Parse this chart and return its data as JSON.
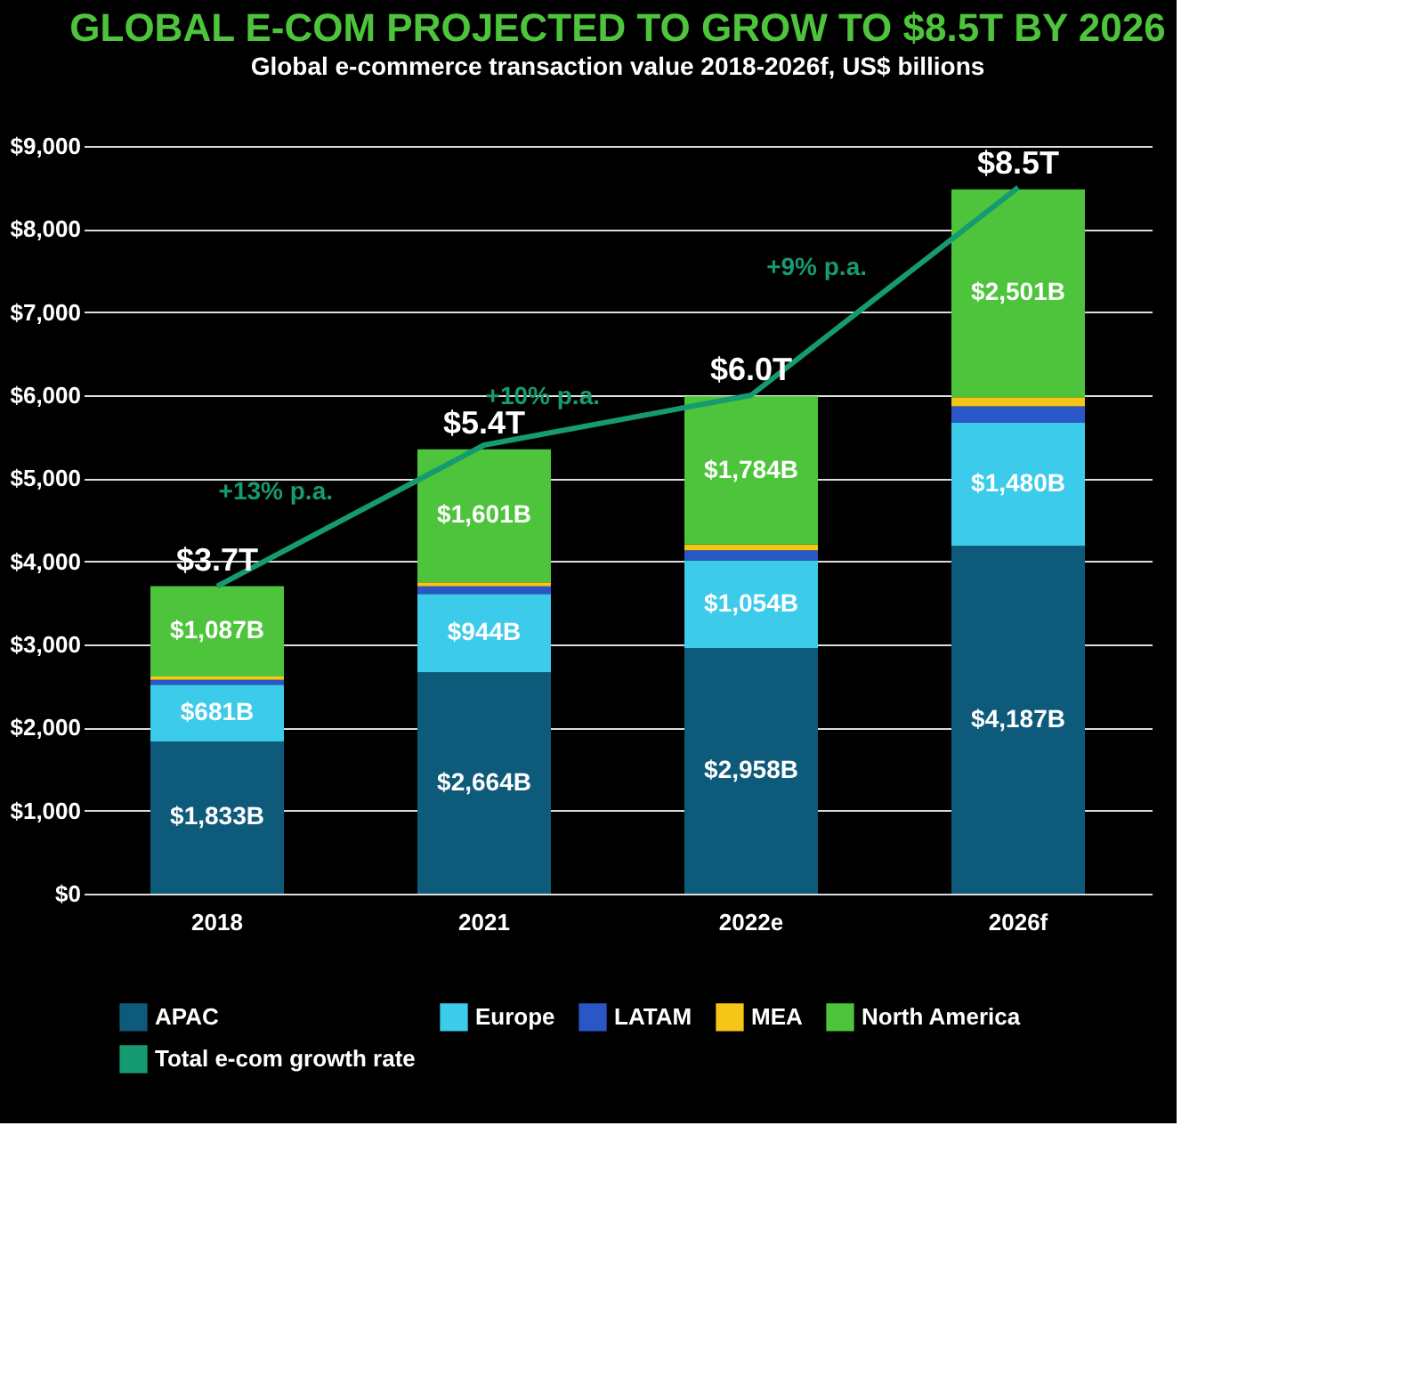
{
  "chart_data": {
    "type": "bar",
    "title": "GLOBAL E-COM PROJECTED TO GROW TO $8.5T BY 2026",
    "subtitle": "Global e-commerce transaction value 2018-2026f, US$ billions",
    "categories": [
      "2018",
      "2021",
      "2022e",
      "2026f"
    ],
    "stacked": true,
    "series": [
      {
        "name": "APAC",
        "color": "#0e5a7a",
        "values": [
          1833,
          2664,
          2958,
          4187
        ],
        "value_labels": [
          "$1,833B",
          "$2,664B",
          "$2,958B",
          "$4,187B"
        ]
      },
      {
        "name": "Europe",
        "color": "#3ccbea",
        "values": [
          681,
          944,
          1054,
          1480
        ],
        "value_labels": [
          "$681B",
          "$944B",
          "$1,054B",
          "$1,480B"
        ]
      },
      {
        "name": "LATAM",
        "color": "#2a56c6",
        "values": [
          60,
          90,
          120,
          200
        ]
      },
      {
        "name": "MEA",
        "color": "#f5c518",
        "values": [
          40,
          50,
          70,
          110
        ]
      },
      {
        "name": "North America",
        "color": "#4ec43c",
        "values": [
          1087,
          1601,
          1784,
          2501
        ],
        "value_labels": [
          "$1,087B",
          "$1,601B",
          "$1,784B",
          "$2,501B"
        ]
      },
      {
        "name": "Total e-com growth rate",
        "type": "line",
        "color": "#169a72",
        "values": [
          3700,
          5400,
          6000,
          8500
        ]
      }
    ],
    "totals": [
      "$3.7T",
      "$5.4T",
      "$6.0T",
      "$8.5T"
    ],
    "annotations": [
      "+13% p.a.",
      "+10% p.a.",
      "+9% p.a."
    ],
    "ylim": [
      0,
      9000
    ],
    "yticks": [
      {
        "value": 0,
        "label": "$0"
      },
      {
        "value": 1000,
        "label": "$1,000"
      },
      {
        "value": 2000,
        "label": "$2,000"
      },
      {
        "value": 3000,
        "label": "$3,000"
      },
      {
        "value": 4000,
        "label": "$4,000"
      },
      {
        "value": 5000,
        "label": "$5,000"
      },
      {
        "value": 6000,
        "label": "$6,000"
      },
      {
        "value": 7000,
        "label": "$7,000"
      },
      {
        "value": 8000,
        "label": "$8,000"
      },
      {
        "value": 9000,
        "label": "$9,000"
      }
    ],
    "grid": "y",
    "legend": "bottom"
  }
}
